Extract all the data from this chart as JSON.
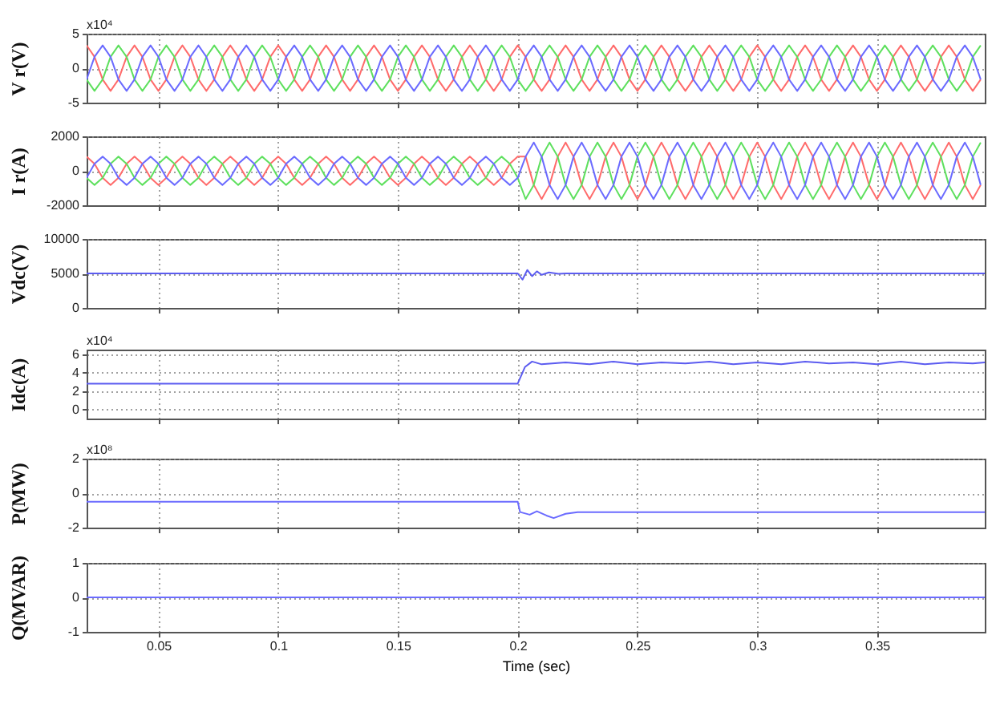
{
  "chart_data": [
    {
      "type": "line",
      "ylabel": "V r(V)",
      "annotations": [
        "x10⁴"
      ],
      "xlim": [
        0.02,
        0.395
      ],
      "xticks": [
        0.05,
        0.1,
        0.15,
        0.2,
        0.25,
        0.3,
        0.35
      ],
      "ylim": [
        -5,
        5
      ],
      "yticks": [
        -5,
        0,
        5
      ],
      "grid": true,
      "tick_labels": "y",
      "x": [
        0.02,
        0.0233,
        0.0267,
        0.03,
        0.0333,
        0.0367,
        0.04,
        0.0433,
        0.0467,
        0.05,
        0.0533,
        0.0567,
        0.06,
        0.0633,
        0.0667,
        0.07,
        0.0733,
        0.0767,
        0.08,
        0.0833,
        0.0867,
        0.09,
        0.0933,
        0.0967,
        0.1,
        0.1033,
        0.1067,
        0.11,
        0.1133,
        0.1167,
        0.12,
        0.1233,
        0.1267,
        0.13,
        0.1333,
        0.1367,
        0.14,
        0.1433,
        0.1467,
        0.15,
        0.1533,
        0.1567,
        0.16,
        0.1633,
        0.1667,
        0.17,
        0.1733,
        0.1767,
        0.18,
        0.1833,
        0.1867,
        0.19,
        0.1933,
        0.1967,
        0.2,
        0.2033,
        0.2067,
        0.21,
        0.2133,
        0.2167,
        0.22,
        0.2233,
        0.2267,
        0.23,
        0.2333,
        0.2367,
        0.24,
        0.2433,
        0.2467,
        0.25,
        0.2533,
        0.2567,
        0.26,
        0.2633,
        0.2667,
        0.27,
        0.2733,
        0.2767,
        0.28,
        0.2833,
        0.2867,
        0.29,
        0.2933,
        0.2967,
        0.3,
        0.3033,
        0.3067,
        0.31,
        0.3133,
        0.3167,
        0.32,
        0.3233,
        0.3267,
        0.33,
        0.3333,
        0.3367,
        0.34,
        0.3433,
        0.3467,
        0.35,
        0.3533,
        0.3567,
        0.36,
        0.3633,
        0.3667,
        0.37,
        0.3733,
        0.3767,
        0.38,
        0.3833,
        0.3867,
        0.39,
        0.3933
      ],
      "series": [
        {
          "color": "#ff6b6b",
          "values": [
            3.3,
            1.65,
            -1.65,
            -3.3,
            -1.65,
            1.65,
            3.3,
            1.65,
            -1.65,
            -3.3,
            -1.65,
            1.65,
            3.3,
            1.65,
            -1.65,
            -3.3,
            -1.65,
            1.65,
            3.3,
            1.65,
            -1.65,
            -3.3,
            -1.65,
            1.65,
            3.3,
            1.65,
            -1.65,
            -3.3,
            -1.65,
            1.65,
            3.3,
            1.65,
            -1.65,
            -3.3,
            -1.65,
            1.65,
            3.3,
            1.65,
            -1.65,
            -3.3,
            -1.65,
            1.65,
            3.3,
            1.65,
            -1.65,
            -3.3,
            -1.65,
            1.65,
            3.3,
            1.65,
            -1.65,
            -3.3,
            -1.65,
            1.65,
            3.3,
            1.65,
            -1.65,
            -3.3,
            -1.65,
            1.65,
            3.3,
            1.65,
            -1.65,
            -3.3,
            -1.65,
            1.65,
            3.3,
            1.65,
            -1.65,
            -3.3,
            -1.65,
            1.65,
            3.3,
            1.65,
            -1.65,
            -3.3,
            -1.65,
            1.65,
            3.3,
            1.65,
            -1.65,
            -3.3,
            -1.65,
            1.65,
            3.3,
            1.65,
            -1.65,
            -3.3,
            -1.65,
            1.65,
            3.3,
            1.65,
            -1.65,
            -3.3,
            -1.65,
            1.65,
            3.3,
            1.65,
            -1.65,
            -3.3,
            -1.65,
            1.65,
            3.3,
            1.65,
            -1.65,
            -3.3,
            -1.65,
            1.65,
            3.3,
            1.65,
            -1.65,
            -3.3,
            -1.65
          ]
        },
        {
          "color": "#5ee05e",
          "values": [
            -1.65,
            -3.3,
            -1.65,
            1.65,
            3.3,
            1.65,
            -1.65,
            -3.3,
            -1.65,
            1.65,
            3.3,
            1.65,
            -1.65,
            -3.3,
            -1.65,
            1.65,
            3.3,
            1.65,
            -1.65,
            -3.3,
            -1.65,
            1.65,
            3.3,
            1.65,
            -1.65,
            -3.3,
            -1.65,
            1.65,
            3.3,
            1.65,
            -1.65,
            -3.3,
            -1.65,
            1.65,
            3.3,
            1.65,
            -1.65,
            -3.3,
            -1.65,
            1.65,
            3.3,
            1.65,
            -1.65,
            -3.3,
            -1.65,
            1.65,
            3.3,
            1.65,
            -1.65,
            -3.3,
            -1.65,
            1.65,
            3.3,
            1.65,
            -1.65,
            -3.3,
            -1.65,
            1.65,
            3.3,
            1.65,
            -1.65,
            -3.3,
            -1.65,
            1.65,
            3.3,
            1.65,
            -1.65,
            -3.3,
            -1.65,
            1.65,
            3.3,
            1.65,
            -1.65,
            -3.3,
            -1.65,
            1.65,
            3.3,
            1.65,
            -1.65,
            -3.3,
            -1.65,
            1.65,
            3.3,
            1.65,
            -1.65,
            -3.3,
            -1.65,
            1.65,
            3.3,
            1.65,
            -1.65,
            -3.3,
            -1.65,
            1.65,
            3.3,
            1.65,
            -1.65,
            -3.3,
            -1.65,
            1.65,
            3.3,
            1.65,
            -1.65,
            -3.3,
            -1.65,
            1.65,
            3.3,
            1.65,
            -1.65,
            -3.3,
            -1.65,
            1.65,
            3.3
          ]
        },
        {
          "color": "#6b6bff",
          "values": [
            -1.65,
            1.65,
            3.3,
            1.65,
            -1.65,
            -3.3,
            -1.65,
            1.65,
            3.3,
            1.65,
            -1.65,
            -3.3,
            -1.65,
            1.65,
            3.3,
            1.65,
            -1.65,
            -3.3,
            -1.65,
            1.65,
            3.3,
            1.65,
            -1.65,
            -3.3,
            -1.65,
            1.65,
            3.3,
            1.65,
            -1.65,
            -3.3,
            -1.65,
            1.65,
            3.3,
            1.65,
            -1.65,
            -3.3,
            -1.65,
            1.65,
            3.3,
            1.65,
            -1.65,
            -3.3,
            -1.65,
            1.65,
            3.3,
            1.65,
            -1.65,
            -3.3,
            -1.65,
            1.65,
            3.3,
            1.65,
            -1.65,
            -3.3,
            -1.65,
            1.65,
            3.3,
            1.65,
            -1.65,
            -3.3,
            -1.65,
            1.65,
            3.3,
            1.65,
            -1.65,
            -3.3,
            -1.65,
            1.65,
            3.3,
            1.65,
            -1.65,
            -3.3,
            -1.65,
            1.65,
            3.3,
            1.65,
            -1.65,
            -3.3,
            -1.65,
            1.65,
            3.3,
            1.65,
            -1.65,
            -3.3,
            -1.65,
            1.65,
            3.3,
            1.65,
            -1.65,
            -3.3,
            -1.65,
            1.65,
            3.3,
            1.65,
            -1.65,
            -3.3,
            -1.65,
            1.65,
            3.3,
            1.65,
            -1.65,
            -3.3,
            -1.65,
            1.65,
            3.3,
            1.65,
            -1.65,
            -3.3,
            -1.65,
            1.65,
            3.3,
            1.65,
            -1.65
          ]
        }
      ]
    },
    {
      "type": "line",
      "ylabel": "I r(A)",
      "xlim": [
        0.02,
        0.395
      ],
      "xticks": [
        0.05,
        0.1,
        0.15,
        0.2,
        0.25,
        0.3,
        0.35
      ],
      "ylim": [
        -2000,
        2000
      ],
      "yticks": [
        -2000,
        0,
        2000
      ],
      "grid": true,
      "tick_labels": "y",
      "x": [
        0.02,
        0.0233,
        0.0267,
        0.03,
        0.0333,
        0.0367,
        0.04,
        0.0433,
        0.0467,
        0.05,
        0.0533,
        0.0567,
        0.06,
        0.0633,
        0.0667,
        0.07,
        0.0733,
        0.0767,
        0.08,
        0.0833,
        0.0867,
        0.09,
        0.0933,
        0.0967,
        0.1,
        0.1033,
        0.1067,
        0.11,
        0.1133,
        0.1167,
        0.12,
        0.1233,
        0.1267,
        0.13,
        0.1333,
        0.1367,
        0.14,
        0.1433,
        0.1467,
        0.15,
        0.1533,
        0.1567,
        0.16,
        0.1633,
        0.1667,
        0.17,
        0.1733,
        0.1767,
        0.18,
        0.1833,
        0.1867,
        0.19,
        0.1933,
        0.1967,
        0.2,
        0.2033,
        0.2067,
        0.21,
        0.2133,
        0.2167,
        0.22,
        0.2233,
        0.2267,
        0.23,
        0.2333,
        0.2367,
        0.24,
        0.2433,
        0.2467,
        0.25,
        0.2533,
        0.2567,
        0.26,
        0.2633,
        0.2667,
        0.27,
        0.2733,
        0.2767,
        0.28,
        0.2833,
        0.2867,
        0.29,
        0.2933,
        0.2967,
        0.3,
        0.3033,
        0.3067,
        0.31,
        0.3133,
        0.3167,
        0.32,
        0.3233,
        0.3267,
        0.33,
        0.3333,
        0.3367,
        0.34,
        0.3433,
        0.3467,
        0.35,
        0.3533,
        0.3567,
        0.36,
        0.3633,
        0.3667,
        0.37,
        0.3733,
        0.3767,
        0.38,
        0.3833,
        0.3867,
        0.39,
        0.3933
      ],
      "series": [
        {
          "color": "#ff6b6b",
          "values": [
            820,
            410,
            -410,
            -820,
            -410,
            410,
            820,
            410,
            -410,
            -820,
            -410,
            410,
            820,
            410,
            -410,
            -820,
            -410,
            410,
            820,
            410,
            -410,
            -820,
            -410,
            410,
            820,
            410,
            -410,
            -820,
            -410,
            410,
            820,
            410,
            -410,
            -820,
            -410,
            410,
            820,
            410,
            -410,
            -820,
            -410,
            410,
            820,
            410,
            -410,
            -820,
            -410,
            410,
            820,
            410,
            -410,
            -820,
            -410,
            410,
            820,
            820,
            -820,
            -1640,
            -820,
            820,
            1640,
            820,
            -820,
            -1640,
            -820,
            820,
            1640,
            820,
            -820,
            -1640,
            -820,
            820,
            1640,
            820,
            -820,
            -1640,
            -820,
            820,
            1640,
            820,
            -820,
            -1640,
            -820,
            820,
            1640,
            820,
            -820,
            -1640,
            -820,
            820,
            1640,
            820,
            -820,
            -1640,
            -820,
            820,
            1640,
            820,
            -820,
            -1640,
            -820,
            820,
            1640,
            820,
            -820,
            -1640,
            -820,
            820,
            1640,
            820,
            -820,
            -1640,
            -820
          ]
        },
        {
          "color": "#5ee05e",
          "values": [
            -410,
            -820,
            -410,
            410,
            820,
            410,
            -410,
            -820,
            -410,
            410,
            820,
            410,
            -410,
            -820,
            -410,
            410,
            820,
            410,
            -410,
            -820,
            -410,
            410,
            820,
            410,
            -410,
            -820,
            -410,
            410,
            820,
            410,
            -410,
            -820,
            -410,
            410,
            820,
            410,
            -410,
            -820,
            -410,
            410,
            820,
            410,
            -410,
            -820,
            -410,
            410,
            820,
            410,
            -410,
            -820,
            -410,
            410,
            820,
            410,
            -410,
            -1640,
            -820,
            820,
            1640,
            820,
            -820,
            -1640,
            -820,
            820,
            1640,
            820,
            -820,
            -1640,
            -820,
            820,
            1640,
            820,
            -820,
            -1640,
            -820,
            820,
            1640,
            820,
            -820,
            -1640,
            -820,
            820,
            1640,
            820,
            -820,
            -1640,
            -820,
            820,
            1640,
            820,
            -820,
            -1640,
            -820,
            820,
            1640,
            820,
            -820,
            -1640,
            -820,
            820,
            1640,
            820,
            -820,
            -1640,
            -820,
            820,
            1640,
            820,
            -820,
            -1640,
            -820,
            820,
            1640
          ]
        },
        {
          "color": "#6b6bff",
          "values": [
            -410,
            410,
            820,
            410,
            -410,
            -820,
            -410,
            410,
            820,
            410,
            -410,
            -820,
            -410,
            410,
            820,
            410,
            -410,
            -820,
            -410,
            410,
            820,
            410,
            -410,
            -820,
            -410,
            410,
            820,
            410,
            -410,
            -820,
            -410,
            410,
            820,
            410,
            -410,
            -820,
            -410,
            410,
            820,
            410,
            -410,
            -820,
            -410,
            410,
            820,
            410,
            -410,
            -820,
            -410,
            410,
            820,
            410,
            -410,
            -820,
            -410,
            820,
            1640,
            820,
            -820,
            -1640,
            -820,
            820,
            1640,
            820,
            -820,
            -1640,
            -820,
            820,
            1640,
            820,
            -820,
            -1640,
            -820,
            820,
            1640,
            820,
            -820,
            -1640,
            -820,
            820,
            1640,
            820,
            -820,
            -1640,
            -820,
            820,
            1640,
            820,
            -820,
            -1640,
            -820,
            820,
            1640,
            820,
            -820,
            -1640,
            -820,
            820,
            1640,
            820,
            -820,
            -1640,
            -820,
            820,
            1640,
            820,
            -820,
            -1640,
            -820,
            820,
            1640,
            820,
            -820
          ]
        }
      ]
    },
    {
      "type": "line",
      "ylabel": "Vdc(V)",
      "xlim": [
        0.02,
        0.395
      ],
      "xticks": [
        0.05,
        0.1,
        0.15,
        0.2,
        0.25,
        0.3,
        0.35
      ],
      "ylim": [
        0,
        10000
      ],
      "yticks": [
        0,
        5000,
        10000
      ],
      "grid": true,
      "tick_labels": "y",
      "series": [
        {
          "color": "#5c5cf0",
          "x": [
            0.02,
            0.2,
            0.202,
            0.204,
            0.206,
            0.208,
            0.21,
            0.213,
            0.217,
            0.22,
            0.25,
            0.3,
            0.395
          ],
          "values": [
            5000,
            5000,
            4100,
            5500,
            4600,
            5300,
            4800,
            5150,
            4950,
            5000,
            5000,
            5000,
            5000
          ]
        }
      ]
    },
    {
      "type": "line",
      "ylabel": "Idc(A)",
      "annotations": [
        "x10⁴"
      ],
      "xlim": [
        0.02,
        0.395
      ],
      "xticks": [
        0.05,
        0.1,
        0.15,
        0.2,
        0.25,
        0.3,
        0.35
      ],
      "ylim": [
        -1,
        6.5
      ],
      "yticks": [
        0,
        2,
        4,
        6
      ],
      "grid": true,
      "tick_labels": "y",
      "series": [
        {
          "color": "#5c5cf0",
          "x": [
            0.02,
            0.2,
            0.203,
            0.206,
            0.21,
            0.22,
            0.23,
            0.24,
            0.25,
            0.26,
            0.27,
            0.28,
            0.29,
            0.3,
            0.31,
            0.32,
            0.33,
            0.34,
            0.35,
            0.36,
            0.37,
            0.38,
            0.39,
            0.395
          ],
          "values": [
            2.8,
            2.8,
            4.6,
            5.2,
            4.9,
            5.1,
            4.9,
            5.2,
            4.9,
            5.1,
            5.0,
            5.2,
            4.9,
            5.1,
            4.9,
            5.2,
            5.0,
            5.1,
            4.9,
            5.2,
            4.9,
            5.1,
            5.0,
            5.1
          ]
        }
      ]
    },
    {
      "type": "line",
      "ylabel": "P(MW)",
      "annotations": [
        "x10⁸"
      ],
      "xlim": [
        0.02,
        0.395
      ],
      "xticks": [
        0.05,
        0.1,
        0.15,
        0.2,
        0.25,
        0.3,
        0.35
      ],
      "ylim": [
        -2,
        2
      ],
      "yticks": [
        -2,
        0,
        2
      ],
      "grid": true,
      "tick_labels": "y",
      "series": [
        {
          "color": "#6b6bff",
          "x": [
            0.02,
            0.2,
            0.201,
            0.205,
            0.208,
            0.212,
            0.215,
            0.22,
            0.225,
            0.395
          ],
          "values": [
            -0.5,
            -0.5,
            -1.1,
            -1.25,
            -1.05,
            -1.3,
            -1.45,
            -1.2,
            -1.1,
            -1.1
          ]
        }
      ]
    },
    {
      "type": "line",
      "ylabel": "Q(MVAR)",
      "xlabel": "Time (sec)",
      "xlim": [
        0.02,
        0.395
      ],
      "xticks": [
        0.05,
        0.1,
        0.15,
        0.2,
        0.25,
        0.3,
        0.35
      ],
      "ylim": [
        -1,
        1
      ],
      "yticks": [
        -1,
        0,
        1
      ],
      "grid": true,
      "series": [
        {
          "color": "#6b6bff",
          "x": [
            0.02,
            0.395
          ],
          "values": [
            0,
            0
          ]
        }
      ]
    }
  ]
}
